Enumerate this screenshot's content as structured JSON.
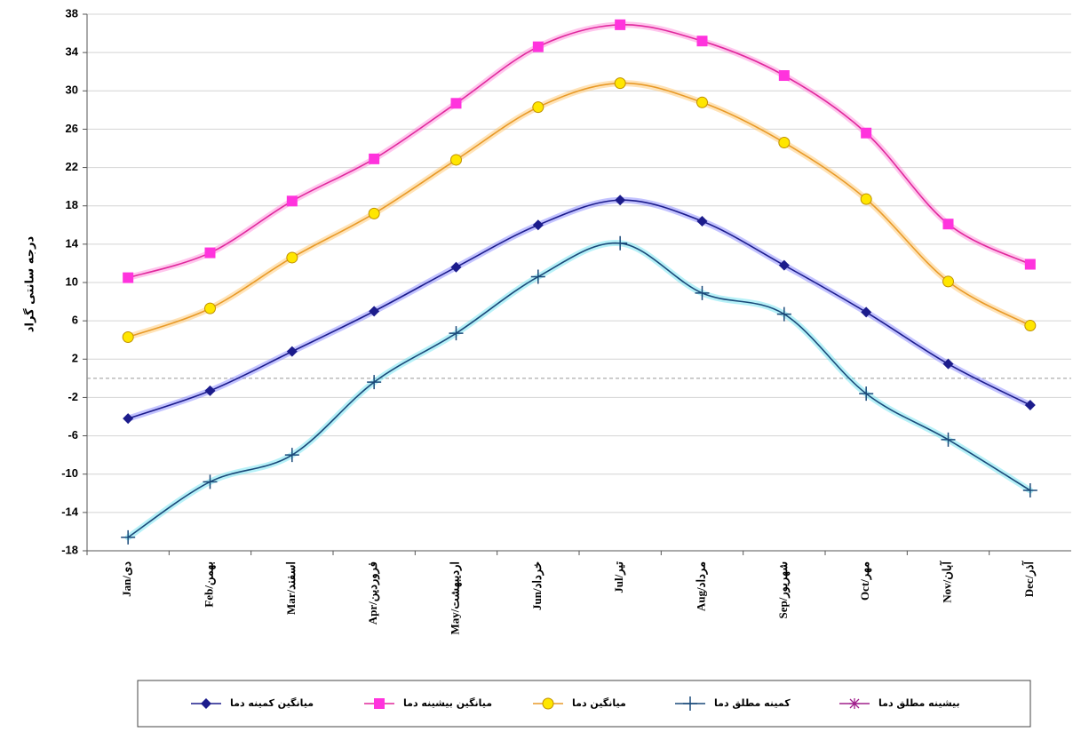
{
  "chart_data": {
    "type": "line",
    "y_label": "درجه سانتی گراد",
    "categories": [
      "Jan/دی",
      "Feb/بهمن",
      "Mar/اسفند",
      "Apr/فروردین",
      "May/اردیبهشت",
      "Jun/خرداد",
      "Jul/تیر",
      "Aug/مرداد",
      "Sep/شهریور",
      "Oct/مهر",
      "Nov/آبان",
      "Dec/آذر"
    ],
    "series": [
      {
        "name": "میانگین کمینه دما",
        "color": "#1c1c8c",
        "marker": "diamond",
        "marker_color": "#1c1c8c",
        "values": [
          -4.2,
          -1.3,
          2.8,
          7.0,
          11.6,
          16.0,
          18.6,
          16.4,
          11.8,
          6.9,
          1.5,
          -2.8
        ]
      },
      {
        "name": "میانگین بیشینه دما",
        "color": "#e0289c",
        "marker": "square",
        "marker_color": "#ff33dd",
        "values": [
          10.5,
          13.1,
          18.5,
          22.9,
          28.7,
          34.6,
          36.9,
          35.2,
          31.6,
          25.6,
          16.1,
          11.9
        ]
      },
      {
        "name": "میانگین دما",
        "color": "#e89a28",
        "marker": "circle",
        "marker_color": "#ffe600",
        "values": [
          4.3,
          7.3,
          12.6,
          17.2,
          22.8,
          28.3,
          30.8,
          28.8,
          24.6,
          18.7,
          10.1,
          5.5
        ]
      },
      {
        "name": "کمینه مطلق دما",
        "color": "#1a4a7a",
        "marker": "plus",
        "marker_color": "#1a4a7a",
        "values": [
          -16.6,
          -10.8,
          -8.0,
          -0.4,
          4.7,
          10.6,
          14.1,
          8.9,
          6.7,
          -1.6,
          -6.4,
          -11.7
        ]
      },
      {
        "name": "بیشینه مطلق دما",
        "color": "#a0208c",
        "marker": "star",
        "marker_color": "#a0208c",
        "values": [
          null,
          null,
          null,
          null,
          null,
          null,
          null,
          null,
          null,
          null,
          null,
          null
        ]
      }
    ],
    "glow_colors": [
      "#7a7aff",
      "#ff80d8",
      "#ffc060",
      "#60e0f0",
      "#e080d0"
    ],
    "ylim": [
      -18,
      38
    ],
    "yticks": [
      -18,
      -14,
      -10,
      -6,
      -2,
      2,
      6,
      10,
      14,
      18,
      22,
      26,
      30,
      34,
      38
    ],
    "grid": true
  }
}
